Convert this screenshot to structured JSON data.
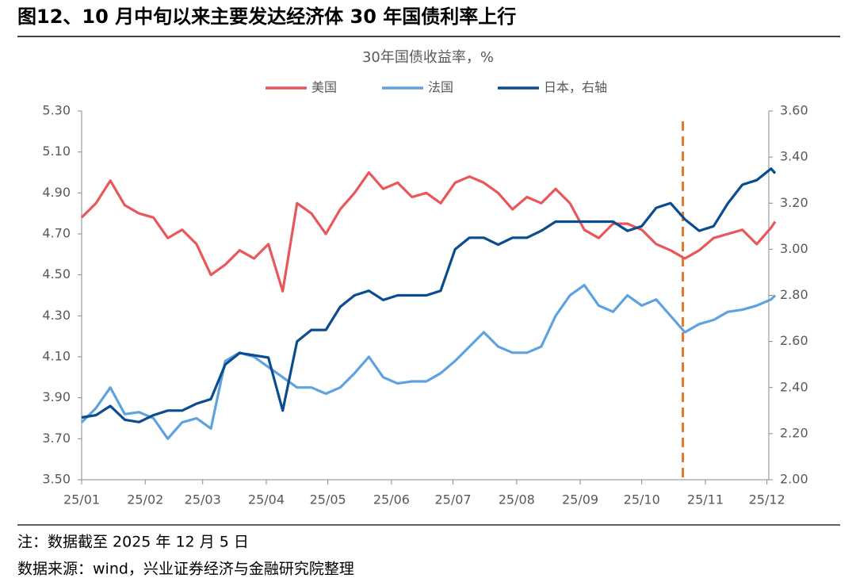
{
  "chart_data": {
    "type": "line",
    "title": "图12、10 月中旬以来主要发达经济体 30 年国债利率上行",
    "subtitle": "30年国债收益率，%",
    "notes": [
      "注：数据截至 2025 年 12 月 5 日",
      "数据来源：wind，兴业证券经济与金融研究院整理"
    ],
    "x": [
      0,
      7,
      14,
      21,
      28,
      35,
      42,
      49,
      56,
      63,
      70,
      77,
      84,
      91,
      98,
      105,
      112,
      119,
      126,
      133,
      140,
      147,
      154,
      161,
      168,
      175,
      182,
      189,
      196,
      203,
      210,
      217,
      224,
      231,
      238,
      245,
      252,
      259,
      266,
      273,
      280,
      287,
      294,
      301,
      308,
      315,
      322,
      329,
      336,
      338
    ],
    "xlim": [
      0,
      338
    ],
    "xticks": [
      {
        "value": 0,
        "label": "25/01"
      },
      {
        "value": 31,
        "label": "25/02"
      },
      {
        "value": 59,
        "label": "25/03"
      },
      {
        "value": 90,
        "label": "25/04"
      },
      {
        "value": 120,
        "label": "25/05"
      },
      {
        "value": 151,
        "label": "25/06"
      },
      {
        "value": 181,
        "label": "25/07"
      },
      {
        "value": 212,
        "label": "25/08"
      },
      {
        "value": 243,
        "label": "25/09"
      },
      {
        "value": 273,
        "label": "25/10"
      },
      {
        "value": 304,
        "label": "25/11"
      },
      {
        "value": 334,
        "label": "25/12"
      }
    ],
    "ylim": [
      3.5,
      5.3
    ],
    "yticks": [
      {
        "value": 3.5,
        "label": "3.50"
      },
      {
        "value": 3.7,
        "label": "3.70"
      },
      {
        "value": 3.9,
        "label": "3.90"
      },
      {
        "value": 4.1,
        "label": "4.10"
      },
      {
        "value": 4.3,
        "label": "4.30"
      },
      {
        "value": 4.5,
        "label": "4.50"
      },
      {
        "value": 4.7,
        "label": "4.70"
      },
      {
        "value": 4.9,
        "label": "4.90"
      },
      {
        "value": 5.1,
        "label": "5.10"
      },
      {
        "value": 5.3,
        "label": "5.30"
      }
    ],
    "y2lim": [
      2.0,
      3.6
    ],
    "y2ticks": [
      {
        "value": 2.0,
        "label": "2.00"
      },
      {
        "value": 2.2,
        "label": "2.20"
      },
      {
        "value": 2.4,
        "label": "2.40"
      },
      {
        "value": 2.6,
        "label": "2.60"
      },
      {
        "value": 2.8,
        "label": "2.80"
      },
      {
        "value": 3.0,
        "label": "3.00"
      },
      {
        "value": 3.2,
        "label": "3.20"
      },
      {
        "value": 3.4,
        "label": "3.40"
      },
      {
        "value": 3.6,
        "label": "3.60"
      }
    ],
    "vline": {
      "x": 293,
      "color": "#e8782a"
    },
    "legend": "top",
    "series": [
      {
        "name": "美国",
        "color": "#e8575a",
        "values": [
          4.78,
          4.85,
          4.96,
          4.84,
          4.8,
          4.78,
          4.68,
          4.72,
          4.65,
          4.5,
          4.55,
          4.62,
          4.58,
          4.65,
          4.42,
          4.85,
          4.8,
          4.7,
          4.82,
          4.9,
          5.0,
          4.92,
          4.95,
          4.88,
          4.9,
          4.85,
          4.95,
          4.98,
          4.95,
          4.9,
          4.82,
          4.88,
          4.85,
          4.92,
          4.85,
          4.72,
          4.68,
          4.75,
          4.75,
          4.72,
          4.65,
          4.62,
          4.58,
          4.62,
          4.68,
          4.7,
          4.72,
          4.65,
          4.73,
          4.76
        ]
      },
      {
        "name": "法国",
        "color": "#5fa2e0",
        "values": [
          3.78,
          3.85,
          3.95,
          3.82,
          3.83,
          3.8,
          3.7,
          3.78,
          3.8,
          3.75,
          4.08,
          4.12,
          4.1,
          4.05,
          4.0,
          3.95,
          3.95,
          3.92,
          3.95,
          4.02,
          4.1,
          4.0,
          3.97,
          3.98,
          3.98,
          4.02,
          4.08,
          4.15,
          4.22,
          4.15,
          4.12,
          4.12,
          4.15,
          4.3,
          4.4,
          4.45,
          4.35,
          4.32,
          4.4,
          4.35,
          4.38,
          4.3,
          4.22,
          4.26,
          4.28,
          4.32,
          4.33,
          4.35,
          4.38,
          4.4
        ]
      },
      {
        "name": "日本，右轴",
        "color": "#0b4c8f",
        "axis": "y2",
        "values": [
          2.27,
          2.28,
          2.32,
          2.26,
          2.25,
          2.28,
          2.3,
          2.3,
          2.33,
          2.35,
          2.5,
          2.55,
          2.54,
          2.53,
          2.3,
          2.6,
          2.65,
          2.65,
          2.75,
          2.8,
          2.82,
          2.78,
          2.8,
          2.8,
          2.8,
          2.82,
          3.0,
          3.05,
          3.05,
          3.02,
          3.05,
          3.05,
          3.08,
          3.12,
          3.12,
          3.12,
          3.12,
          3.12,
          3.08,
          3.1,
          3.18,
          3.2,
          3.13,
          3.08,
          3.1,
          3.2,
          3.28,
          3.3,
          3.35,
          3.33
        ]
      }
    ]
  }
}
